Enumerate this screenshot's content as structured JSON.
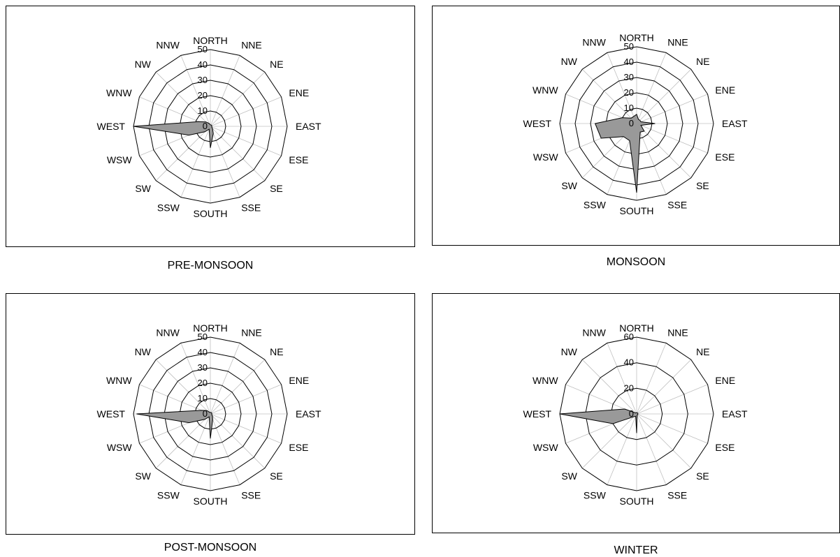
{
  "chart_data": [
    {
      "type": "radar",
      "caption": "PRE-MONSOON",
      "directions": [
        "NORTH",
        "NNE",
        "NE",
        "ENE",
        "EAST",
        "ESE",
        "SE",
        "SSE",
        "SOUTH",
        "SSW",
        "SW",
        "WSW",
        "WEST",
        "WNW",
        "NW",
        "NNW"
      ],
      "rmax": 50,
      "ticks": [
        0,
        10,
        20,
        30,
        40,
        50
      ],
      "values": [
        1,
        1,
        1,
        1,
        1,
        1,
        2,
        5,
        14,
        2,
        5,
        15,
        50,
        8,
        4,
        2
      ]
    },
    {
      "type": "radar",
      "caption": "MONSOON",
      "directions": [
        "NORTH",
        "NNE",
        "NE",
        "ENE",
        "EAST",
        "ESE",
        "SE",
        "SSE",
        "SOUTH",
        "SSW",
        "SW",
        "WSW",
        "WEST",
        "WNW",
        "NW",
        "NNW"
      ],
      "rmax": 50,
      "ticks": [
        0,
        10,
        20,
        30,
        40,
        50
      ],
      "values": [
        6,
        3,
        3,
        3,
        12,
        3,
        7,
        6,
        45,
        12,
        12,
        25,
        27,
        10,
        5,
        5
      ]
    },
    {
      "type": "radar",
      "caption": "POST-MONSOON",
      "directions": [
        "NORTH",
        "NNE",
        "NE",
        "ENE",
        "EAST",
        "ESE",
        "SE",
        "SSE",
        "SOUTH",
        "SSW",
        "SW",
        "WSW",
        "WEST",
        "WNW",
        "NW",
        "NNW"
      ],
      "rmax": 50,
      "ticks": [
        0,
        10,
        20,
        30,
        40,
        50
      ],
      "values": [
        1,
        1,
        1,
        1,
        1,
        1,
        2,
        4,
        16,
        2,
        5,
        15,
        48,
        6,
        3,
        1
      ]
    },
    {
      "type": "radar",
      "caption": "WINTER",
      "directions": [
        "NORTH",
        "NNE",
        "NE",
        "ENE",
        "EAST",
        "ESE",
        "SE",
        "SSE",
        "SOUTH",
        "SSW",
        "SW",
        "WSW",
        "WEST",
        "WNW",
        "NW",
        "NNW"
      ],
      "rmax": 60,
      "ticks": [
        0,
        20,
        40,
        60
      ],
      "values": [
        1,
        1,
        1,
        1,
        1,
        1,
        1,
        1,
        15,
        2,
        3,
        20,
        60,
        10,
        1,
        1
      ]
    }
  ],
  "colors": {
    "fill": "#999999",
    "ring": "#000000",
    "spoke": "#c0c0c0"
  }
}
